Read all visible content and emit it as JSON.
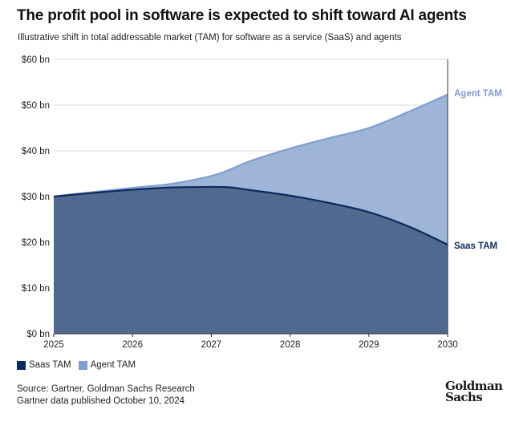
{
  "header": {
    "title": "The profit pool in software is expected to shift toward AI agents",
    "subtitle": "Illustrative shift in total addressable market (TAM) for software as a service (SaaS) and agents"
  },
  "colors": {
    "saas_fill": "#52698f",
    "saas_line": "#0b2a5c",
    "agent_fill": "#9eb5d8",
    "agent_line": "#7f9fcf",
    "grid": "#d9d9d9",
    "axis": "#333333"
  },
  "chart_data": {
    "type": "area",
    "x": [
      2025,
      2025.5,
      2026,
      2026.5,
      2027,
      2027.25,
      2027.5,
      2028,
      2028.5,
      2029,
      2029.5,
      2030
    ],
    "series": [
      {
        "name": "Saas TAM",
        "values": [
          30.0,
          30.8,
          31.5,
          32.0,
          32.1,
          32.0,
          31.4,
          30.2,
          28.6,
          26.6,
          23.5,
          19.5
        ]
      },
      {
        "name": "Agent TAM",
        "values": [
          30.0,
          31.0,
          31.9,
          32.8,
          34.5,
          36.0,
          37.8,
          40.5,
          42.8,
          45.0,
          48.5,
          52.3
        ]
      }
    ],
    "x_ticks": [
      "2025",
      "2026",
      "2027",
      "2028",
      "2029",
      "2030"
    ],
    "y_ticks": [
      "$0 bn",
      "$10 bn",
      "$20 bn",
      "$30 bn",
      "$40 bn",
      "$50 bn",
      "$60 bn"
    ],
    "xlim": [
      2025,
      2030
    ],
    "ylim": [
      0,
      60
    ],
    "grid": true,
    "end_labels": [
      "Agent TAM",
      "Saas TAM"
    ]
  },
  "legend": {
    "items": [
      "Saas TAM",
      "Agent TAM"
    ]
  },
  "footer": {
    "source_line1": "Source: Gartner, Goldman Sachs Research",
    "source_line2": "Gartner data published October 10, 2024",
    "logo_line1": "Goldman",
    "logo_line2": "Sachs"
  }
}
